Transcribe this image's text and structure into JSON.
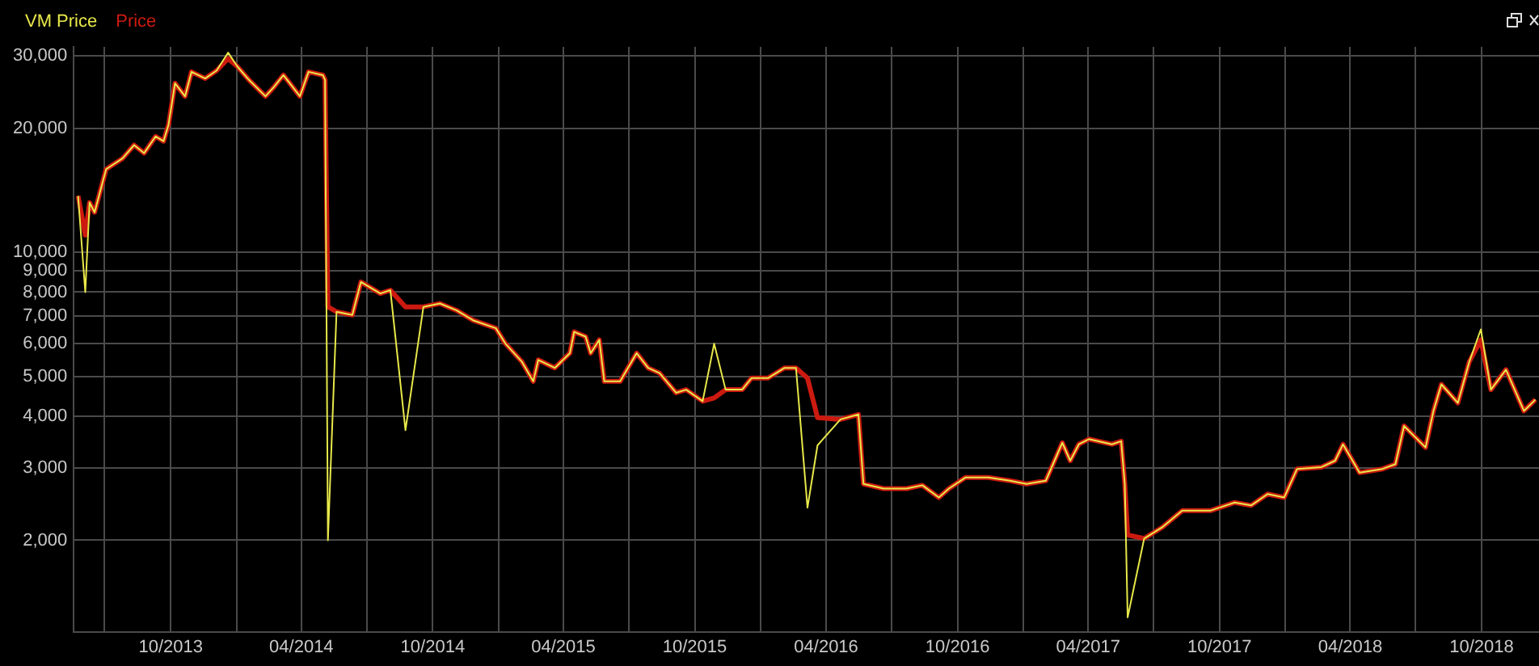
{
  "chart_data": {
    "type": "line",
    "x": [
      "2013-05-25",
      "2013-06-04",
      "2013-06-10",
      "2013-06-17",
      "2013-07-03",
      "2013-07-10",
      "2013-07-26",
      "2013-08-11",
      "2013-08-25",
      "2013-09-10",
      "2013-09-21",
      "2013-09-28",
      "2013-10-07",
      "2013-10-21",
      "2013-10-30",
      "2013-11-18",
      "2013-12-04",
      "2013-12-20",
      "2014-01-02",
      "2014-01-18",
      "2014-02-10",
      "2014-02-22",
      "2014-03-07",
      "2014-03-30",
      "2014-04-11",
      "2014-05-01",
      "2014-05-04",
      "2014-05-08",
      "2014-05-20",
      "2014-06-11",
      "2014-06-23",
      "2014-07-20",
      "2014-08-03",
      "2014-08-24",
      "2014-09-18",
      "2014-10-11",
      "2014-11-03",
      "2014-11-26",
      "2014-12-28",
      "2015-01-10",
      "2015-02-02",
      "2015-02-18",
      "2015-02-25",
      "2015-03-20",
      "2015-04-10",
      "2015-04-16",
      "2015-05-02",
      "2015-05-09",
      "2015-05-21",
      "2015-05-28",
      "2015-06-19",
      "2015-07-12",
      "2015-07-28",
      "2015-08-13",
      "2015-09-05",
      "2015-09-19",
      "2015-10-12",
      "2015-10-28",
      "2015-11-13",
      "2015-12-06",
      "2015-12-19",
      "2016-01-11",
      "2016-02-03",
      "2016-02-19",
      "2016-03-06",
      "2016-03-20",
      "2016-04-21",
      "2016-05-16",
      "2016-05-23",
      "2016-06-20",
      "2016-07-22",
      "2016-08-13",
      "2016-09-05",
      "2016-09-19",
      "2016-10-12",
      "2016-11-13",
      "2016-12-13",
      "2017-01-05",
      "2017-02-01",
      "2017-02-24",
      "2017-03-07",
      "2017-03-19",
      "2017-04-02",
      "2017-05-04",
      "2017-05-17",
      "2017-05-22",
      "2017-05-26",
      "2017-06-18",
      "2017-07-13",
      "2017-08-10",
      "2017-09-18",
      "2017-10-22",
      "2017-11-14",
      "2017-12-07",
      "2017-12-30",
      "2018-01-17",
      "2018-02-20",
      "2018-03-11",
      "2018-03-22",
      "2018-04-14",
      "2018-05-16",
      "2018-06-03",
      "2018-06-15",
      "2018-07-15",
      "2018-07-26",
      "2018-08-06",
      "2018-08-29",
      "2018-09-14",
      "2018-09-30",
      "2018-10-14",
      "2018-11-04",
      "2018-11-29",
      "2018-12-15"
    ],
    "series": [
      {
        "name": "VM Price",
        "color": "#e8e84a",
        "values": [
          13700,
          8000,
          13200,
          12500,
          15900,
          16200,
          16900,
          18200,
          17400,
          19100,
          18600,
          20400,
          25700,
          23900,
          27400,
          26400,
          27600,
          30500,
          28200,
          26200,
          23900,
          25200,
          26900,
          23900,
          27400,
          26900,
          26200,
          2000,
          7170,
          7040,
          8470,
          7940,
          8090,
          3700,
          7370,
          7510,
          7230,
          6840,
          6540,
          6010,
          5430,
          4860,
          5480,
          5240,
          5690,
          6410,
          6240,
          5690,
          6130,
          4860,
          4860,
          5690,
          5240,
          5090,
          4560,
          4640,
          4350,
          6000,
          4640,
          4640,
          4950,
          4950,
          5240,
          5240,
          2400,
          3400,
          3930,
          4040,
          2740,
          2670,
          2670,
          2720,
          2540,
          2670,
          2840,
          2840,
          2790,
          2740,
          2790,
          3450,
          3120,
          3420,
          3520,
          3420,
          3480,
          2740,
          1300,
          2020,
          2150,
          2360,
          2360,
          2470,
          2430,
          2590,
          2540,
          2980,
          3010,
          3120,
          3420,
          2920,
          2980,
          3060,
          3790,
          3360,
          4120,
          4780,
          4310,
          5430,
          6500,
          4640,
          5190,
          4120,
          4390
        ]
      },
      {
        "name": "Price",
        "color": "#cc1a10",
        "values": [
          13700,
          11000,
          13200,
          12500,
          15900,
          16200,
          16900,
          18200,
          17400,
          19100,
          18600,
          20400,
          25700,
          23900,
          27400,
          26400,
          27600,
          29500,
          28200,
          26200,
          23900,
          25200,
          26900,
          23900,
          27400,
          26900,
          26200,
          7370,
          7170,
          7040,
          8470,
          7940,
          8090,
          7370,
          7370,
          7510,
          7230,
          6840,
          6540,
          6010,
          5430,
          4860,
          5480,
          5240,
          5690,
          6410,
          6240,
          5690,
          6130,
          4860,
          4860,
          5690,
          5240,
          5090,
          4560,
          4640,
          4350,
          4430,
          4640,
          4640,
          4950,
          4950,
          5240,
          5240,
          4950,
          3970,
          3930,
          4040,
          2740,
          2670,
          2670,
          2720,
          2540,
          2670,
          2840,
          2840,
          2790,
          2740,
          2790,
          3450,
          3120,
          3420,
          3520,
          3420,
          3480,
          2740,
          2060,
          2020,
          2150,
          2360,
          2360,
          2470,
          2430,
          2590,
          2540,
          2980,
          3010,
          3120,
          3420,
          2920,
          2980,
          3060,
          3790,
          3360,
          4120,
          4780,
          4310,
          5430,
          6130,
          4640,
          5190,
          4120,
          4390
        ]
      }
    ],
    "log": "y",
    "xlim": [
      "2013-05-19",
      "2018-12-20"
    ],
    "xticks": [
      {
        "value": "2013-07-01",
        "label": null
      },
      {
        "value": "2013-10-01",
        "label": "10/2013"
      },
      {
        "value": "2014-01-01",
        "label": null
      },
      {
        "value": "2014-04-01",
        "label": "04/2014"
      },
      {
        "value": "2014-07-01",
        "label": null
      },
      {
        "value": "2014-10-01",
        "label": "10/2014"
      },
      {
        "value": "2015-01-01",
        "label": null
      },
      {
        "value": "2015-04-01",
        "label": "04/2015"
      },
      {
        "value": "2015-07-01",
        "label": null
      },
      {
        "value": "2015-10-01",
        "label": "10/2015"
      },
      {
        "value": "2016-01-01",
        "label": null
      },
      {
        "value": "2016-04-01",
        "label": "04/2016"
      },
      {
        "value": "2016-07-01",
        "label": null
      },
      {
        "value": "2016-10-01",
        "label": "10/2016"
      },
      {
        "value": "2017-01-01",
        "label": null
      },
      {
        "value": "2017-04-01",
        "label": "04/2017"
      },
      {
        "value": "2017-07-01",
        "label": null
      },
      {
        "value": "2017-10-01",
        "label": "10/2017"
      },
      {
        "value": "2018-01-01",
        "label": null
      },
      {
        "value": "2018-04-01",
        "label": "04/2018"
      },
      {
        "value": "2018-07-01",
        "label": null
      },
      {
        "value": "2018-10-01",
        "label": "10/2018"
      }
    ],
    "ylim": [
      1200,
      31500
    ],
    "yticks": [
      {
        "value": 2000,
        "label": "2,000"
      },
      {
        "value": 3000,
        "label": "3,000"
      },
      {
        "value": 4000,
        "label": "4,000"
      },
      {
        "value": 5000,
        "label": "5,000"
      },
      {
        "value": 6000,
        "label": "6,000"
      },
      {
        "value": 7000,
        "label": "7,000"
      },
      {
        "value": 8000,
        "label": "8,000"
      },
      {
        "value": 9000,
        "label": "9,000"
      },
      {
        "value": 10000,
        "label": "10,000"
      },
      {
        "value": 20000,
        "label": "20,000"
      },
      {
        "value": 30000,
        "label": "30,000"
      }
    ],
    "grid": true,
    "legend": "top left",
    "marker": "none",
    "line_style": "solid"
  }
}
